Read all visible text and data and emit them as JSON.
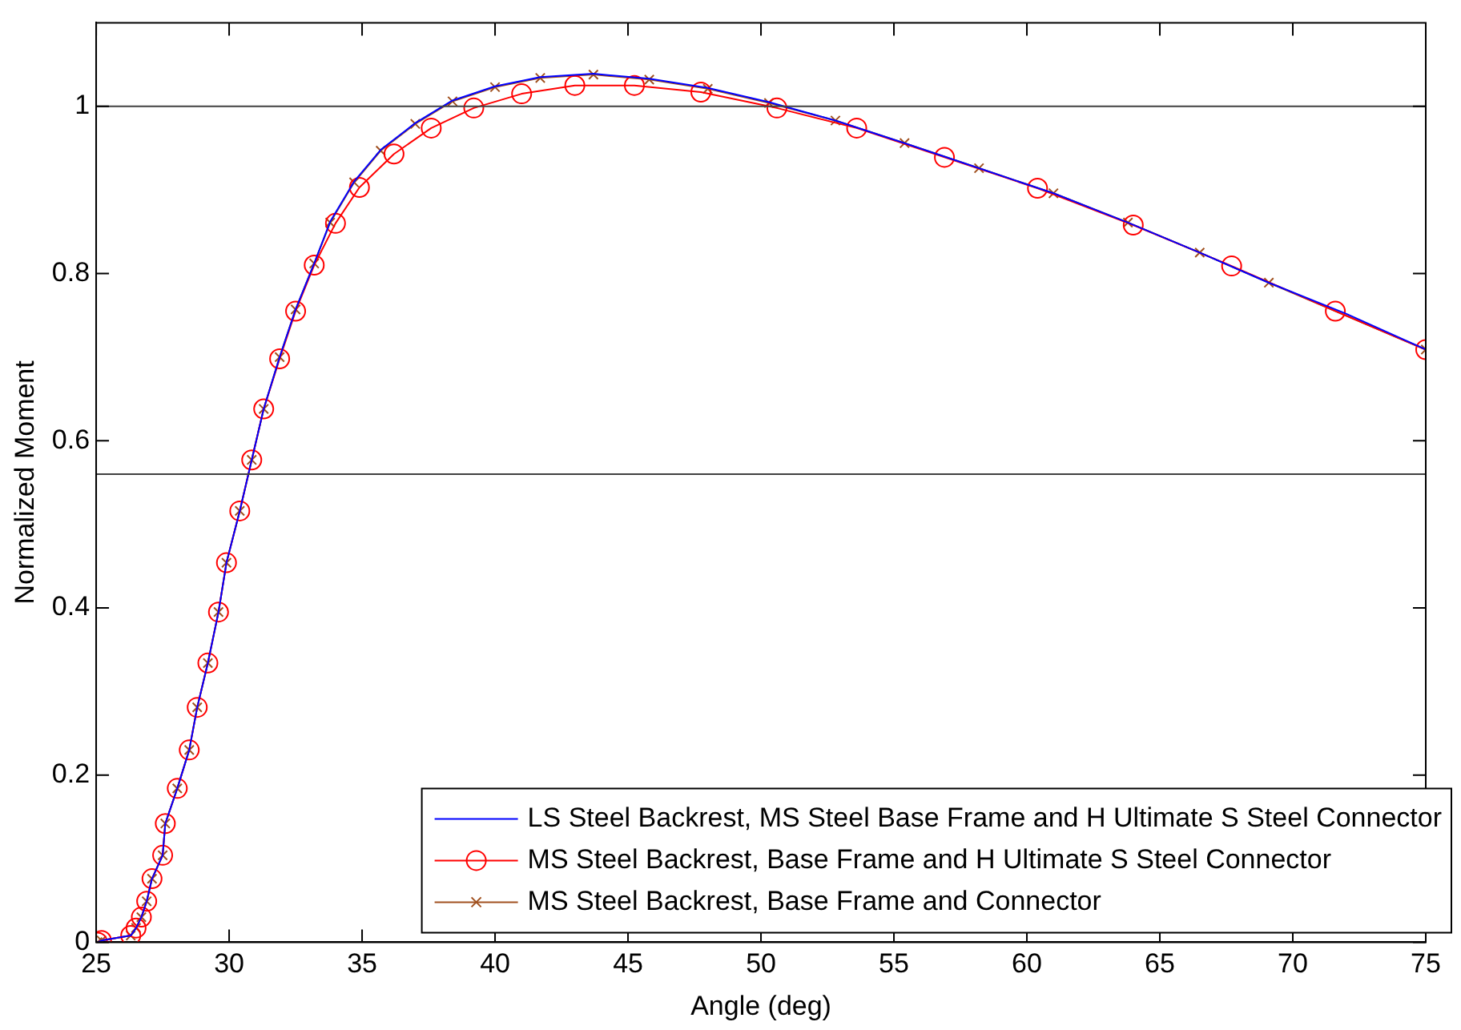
{
  "chart_data": {
    "type": "line",
    "xlabel": "Angle (deg)",
    "ylabel": "Normalized Moment",
    "xlim": [
      25,
      75
    ],
    "xticks": [
      25,
      30,
      35,
      40,
      45,
      50,
      55,
      60,
      65,
      70,
      75
    ],
    "ylim": [
      0,
      1.1
    ],
    "yticks": [
      0,
      0.2,
      0.4,
      0.6,
      0.8,
      1
    ],
    "grid": false,
    "legend": "bottom right",
    "ref_lines": [
      {
        "axis": "y",
        "value": 1,
        "color": "#404040"
      },
      {
        "axis": "y",
        "value": 0.56,
        "color": "#404040"
      }
    ],
    "series": [
      {
        "name": "LS Steel Backrest, MS Steel Base Frame and H Ultimate S Steel Connector",
        "color": "#0000ff",
        "marker": "none",
        "x": [
          25.05,
          25.2,
          26.3,
          26.5,
          26.7,
          26.9,
          27.1,
          27.5,
          27.6,
          28.05,
          28.5,
          28.8,
          29.2,
          29.6,
          29.9,
          30.4,
          30.85,
          31.3,
          31.9,
          32.5,
          33.2,
          33.8,
          34.7,
          35.7,
          37.0,
          38.4,
          40.0,
          41.7,
          43.7,
          45.8,
          48.0,
          50.3,
          52.8,
          55.4,
          58.2,
          61.0,
          63.8,
          66.5,
          69.1,
          72.0,
          75
        ],
        "values": [
          0,
          0.002,
          0.008,
          0.017,
          0.03,
          0.049,
          0.076,
          0.104,
          0.142,
          0.184,
          0.23,
          0.281,
          0.334,
          0.395,
          0.454,
          0.516,
          0.577,
          0.638,
          0.7,
          0.757,
          0.812,
          0.862,
          0.91,
          0.948,
          0.98,
          1.007,
          1.024,
          1.035,
          1.039,
          1.033,
          1.022,
          1.005,
          0.983,
          0.956,
          0.926,
          0.896,
          0.861,
          0.825,
          0.789,
          0.752,
          0.709
        ]
      },
      {
        "name": "MS Steel Backrest, Base Frame and H Ultimate S Steel Connector",
        "color": "#ff0000",
        "marker": "circle",
        "x": [
          25.05,
          25.2,
          26.3,
          26.5,
          26.7,
          26.9,
          27.1,
          27.5,
          27.6,
          28.05,
          28.5,
          28.8,
          29.2,
          29.6,
          29.9,
          30.4,
          30.85,
          31.3,
          31.9,
          32.5,
          33.2,
          34.0,
          34.9,
          36.2,
          37.6,
          39.2,
          41.0,
          43.0,
          45.24,
          47.74,
          50.6,
          53.6,
          56.9,
          60.4,
          64.0,
          67.7,
          71.6,
          75
        ],
        "values": [
          0,
          0.002,
          0.008,
          0.017,
          0.03,
          0.049,
          0.076,
          0.104,
          0.142,
          0.184,
          0.23,
          0.281,
          0.334,
          0.395,
          0.454,
          0.516,
          0.577,
          0.638,
          0.698,
          0.755,
          0.81,
          0.86,
          0.903,
          0.943,
          0.974,
          0.998,
          1.015,
          1.025,
          1.025,
          1.017,
          0.998,
          0.974,
          0.939,
          0.902,
          0.858,
          0.809,
          0.755,
          0.709
        ]
      },
      {
        "name": "MS Steel Backrest, Base Frame and Connector",
        "color": "#a0501e",
        "marker": "cross",
        "x": [
          25.05,
          25.2,
          26.3,
          26.5,
          26.7,
          26.9,
          27.1,
          27.5,
          27.6,
          28.05,
          28.5,
          28.8,
          29.2,
          29.6,
          29.9,
          30.4,
          30.85,
          31.3,
          31.9,
          32.5,
          33.2,
          33.8,
          34.7,
          35.7,
          37.0,
          38.4,
          40.0,
          41.7,
          43.7,
          45.8,
          48.0,
          50.3,
          52.8,
          55.4,
          58.2,
          61.0,
          63.8,
          66.5,
          69.1,
          75
        ],
        "values": [
          0,
          0.002,
          0.008,
          0.017,
          0.03,
          0.049,
          0.076,
          0.104,
          0.142,
          0.184,
          0.23,
          0.281,
          0.334,
          0.395,
          0.454,
          0.516,
          0.577,
          0.638,
          0.7,
          0.757,
          0.812,
          0.861,
          0.909,
          0.947,
          0.979,
          1.006,
          1.023,
          1.034,
          1.038,
          1.032,
          1.021,
          1.004,
          0.983,
          0.956,
          0.926,
          0.896,
          0.861,
          0.825,
          0.789,
          0.709
        ]
      }
    ]
  }
}
